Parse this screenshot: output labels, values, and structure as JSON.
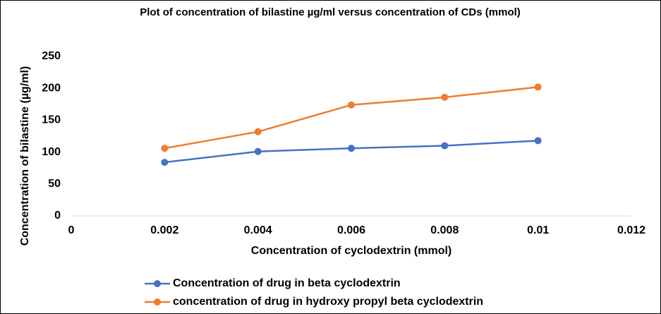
{
  "chart_data": {
    "type": "line",
    "title": "Plot of concentration of bilastine µg/ml versus concentration of CDs (mmol)",
    "x_label": "Concentration of cyclodextrin (mmol)",
    "y_label": "Concentration of bilastine (µg/ml)",
    "x": [
      0.002,
      0.004,
      0.006,
      0.008,
      0.01
    ],
    "series": [
      {
        "name": "Concentration of drug in beta cyclodextrin",
        "color": "#4472c4",
        "values": [
          84,
          101,
          106,
          110,
          118
        ]
      },
      {
        "name": "concentration of drug in hydroxy propyl beta cyclodextrin",
        "color": "#ed7d31",
        "values": [
          106,
          132,
          174,
          186,
          202
        ]
      }
    ],
    "xlim": [
      0,
      0.012
    ],
    "xticks": [
      0,
      0.002,
      0.004,
      0.006,
      0.008,
      0.01,
      0.012
    ],
    "ylim": [
      0,
      250
    ],
    "yticks": [
      0,
      50,
      100,
      150,
      200,
      250
    ],
    "grid": false,
    "legend": "bottom-left"
  }
}
